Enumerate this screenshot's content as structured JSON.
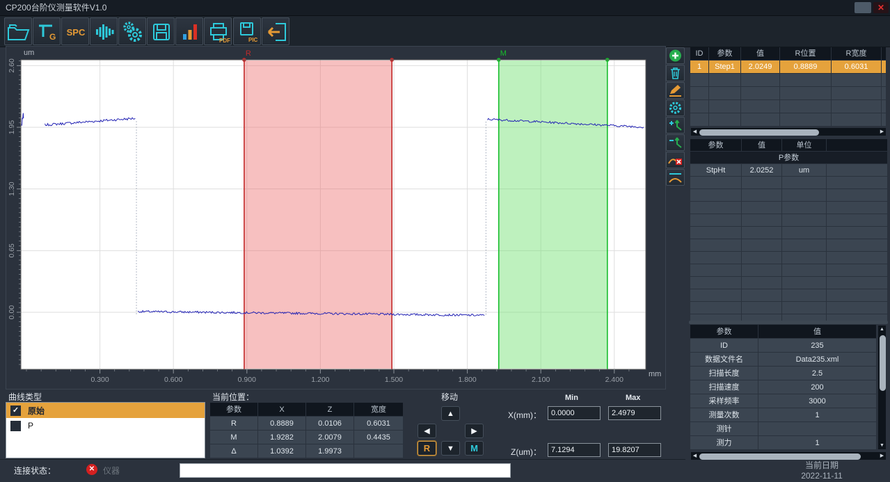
{
  "window": {
    "title": "CP200台阶仪测量软件V1.0",
    "close_glyph": "✕"
  },
  "toolbar": {
    "buttons": [
      {
        "name": "open-file",
        "label": ""
      },
      {
        "name": "probe-gauge",
        "label": "G"
      },
      {
        "name": "spc",
        "label": "SPC"
      },
      {
        "name": "waveform",
        "label": ""
      },
      {
        "name": "settings-gears",
        "label": ""
      },
      {
        "name": "save",
        "label": ""
      },
      {
        "name": "statistics-chart",
        "label": ""
      },
      {
        "name": "print-pdf",
        "label": "PDF"
      },
      {
        "name": "save-picture",
        "label": "PIC"
      },
      {
        "name": "exit",
        "label": ""
      }
    ]
  },
  "side_toolbar": {
    "buttons": [
      {
        "name": "add"
      },
      {
        "name": "delete"
      },
      {
        "name": "edit"
      },
      {
        "name": "settings"
      },
      {
        "name": "add-marker"
      },
      {
        "name": "remove-marker"
      },
      {
        "name": "remove-curve"
      },
      {
        "name": "level-curve"
      }
    ]
  },
  "results_table": {
    "headers": [
      "ID",
      "参数",
      "值",
      "R位置",
      "R宽度"
    ],
    "rows": [
      [
        "1",
        "Step1",
        "2.0249",
        "0.8889",
        "0.6031"
      ]
    ],
    "selected_row": 0
  },
  "param_table": {
    "headers": [
      "参数",
      "值",
      "单位"
    ],
    "section_label": "P参数",
    "rows": [
      [
        "StpHt",
        "2.0252",
        "um"
      ]
    ]
  },
  "info_table": {
    "headers": [
      "参数",
      "值"
    ],
    "rows": [
      [
        "ID",
        "235"
      ],
      [
        "数据文件名",
        "Data235.xml"
      ],
      [
        "扫描长度",
        "2.5"
      ],
      [
        "扫描速度",
        "200"
      ],
      [
        "采样频率",
        "3000"
      ],
      [
        "测量次数",
        "1"
      ],
      [
        "测针",
        ""
      ],
      [
        "测力",
        "1"
      ]
    ]
  },
  "curve_types": {
    "label": "曲线类型",
    "items": [
      {
        "label": "原始",
        "checked": true,
        "selected": true
      },
      {
        "label": "P",
        "checked": false,
        "selected": false
      }
    ]
  },
  "position_panel": {
    "label": "当前位置：",
    "headers": [
      "参数",
      "X",
      "Z",
      "宽度"
    ],
    "rows": [
      [
        "R",
        "0.8889",
        "0.0106",
        "0.6031"
      ],
      [
        "M",
        "1.9282",
        "2.0079",
        "0.4435"
      ],
      [
        "Δ",
        "1.0392",
        "1.9973",
        ""
      ]
    ]
  },
  "move_panel": {
    "label": "移动",
    "r_label": "R",
    "m_label": "M"
  },
  "range_panel": {
    "min_label": "Min",
    "max_label": "Max",
    "x_label": "X(mm)：",
    "x_min": "0.0000",
    "x_max": "2.4979",
    "z_label": "Z(um)：",
    "z_min": "7.1294",
    "z_max": "19.8207"
  },
  "status_bar": {
    "label": "连接状态：",
    "device_label": "仪器",
    "message": ""
  },
  "date_panel": {
    "label": "当前日期",
    "value": "2022-11-11"
  },
  "chart_data": {
    "type": "line",
    "title": "",
    "xlabel": "mm",
    "ylabel": "um",
    "xlim": [
      -0.02,
      2.53
    ],
    "ylim": [
      -0.6,
      2.66
    ],
    "grid": true,
    "x_ticks": [
      0.3,
      0.6,
      0.9,
      1.2,
      1.5,
      1.8,
      2.1,
      2.4
    ],
    "x_tick_labels": [
      "0.300",
      "0.600",
      "0.900",
      "1.200",
      "1.500",
      "1.800",
      "2.100",
      "2.400"
    ],
    "y_ticks": [
      0.0,
      0.65,
      1.3,
      1.95,
      2.6
    ],
    "y_tick_labels": [
      "0.00",
      "0.65",
      "1.30",
      "1.95",
      "2.60"
    ],
    "regions": [
      {
        "label": "R",
        "x0": 0.8889,
        "x1": 1.492,
        "line_color": "#c22a2a",
        "fill_color": "rgba(236,106,106,0.42)"
      },
      {
        "label": "M",
        "x0": 1.9282,
        "x1": 2.3717,
        "line_color": "#17bd2c",
        "fill_color": "rgba(110,224,110,0.45)"
      }
    ],
    "series": [
      {
        "name": "原始",
        "color": "#2424b4",
        "segments": [
          {
            "x0": -0.02,
            "x1": -0.012,
            "y0": 1.97,
            "y1": 2.08,
            "noise": 0.04
          },
          {
            "x0": 0.075,
            "x1": 0.444,
            "y0": 1.975,
            "y1": 2.045,
            "noise": 0.013
          },
          {
            "x0": 0.455,
            "x1": 1.87,
            "y0": 0.008,
            "y1": -0.032,
            "noise": 0.011
          },
          {
            "x0": 1.882,
            "x1": 2.52,
            "y0": 2.035,
            "y1": 1.952,
            "noise": 0.011
          }
        ],
        "transitions": [
          {
            "x": 0.449,
            "y_low": -0.02,
            "y_high": 2.03
          },
          {
            "x": 1.876,
            "y_low": -0.025,
            "y_high": 2.02
          }
        ]
      }
    ],
    "step_summary": {
      "upper_level_um": 2.02,
      "lower_level_um": 0.0,
      "step_height_um": 2.0252
    }
  }
}
